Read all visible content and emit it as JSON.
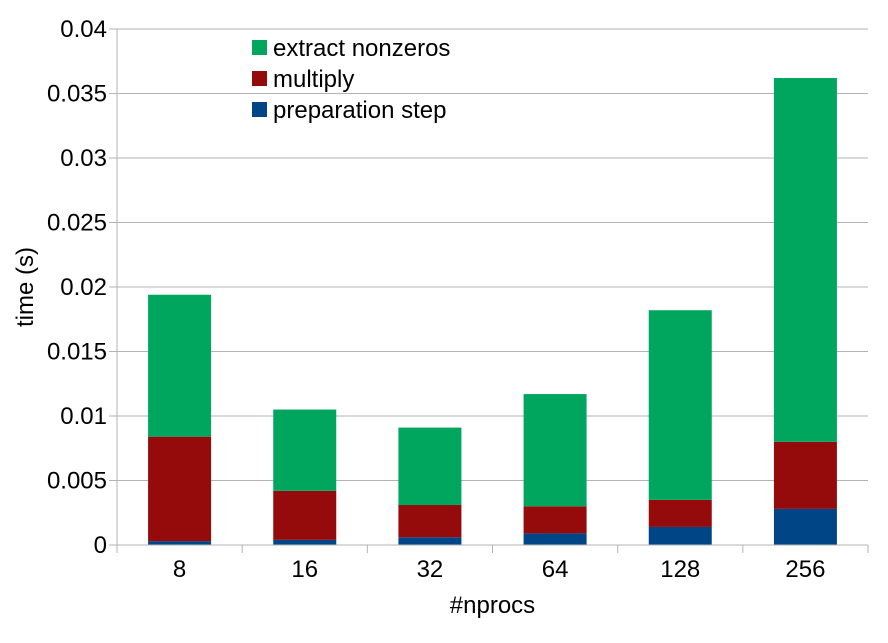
{
  "chart_data": {
    "type": "bar",
    "stacked": true,
    "categories": [
      "8",
      "16",
      "32",
      "64",
      "128",
      "256"
    ],
    "series": [
      {
        "name": "preparation step",
        "color": "#004586",
        "values": [
          0.0003,
          0.0004,
          0.0006,
          0.0009,
          0.0014,
          0.0028
        ]
      },
      {
        "name": "multiply",
        "color": "#950B0B",
        "values": [
          0.0081,
          0.0038,
          0.0025,
          0.0021,
          0.0021,
          0.0052
        ]
      },
      {
        "name": "extract nonzeros",
        "color": "#00A65D",
        "values": [
          0.011,
          0.0063,
          0.006,
          0.0087,
          0.0147,
          0.0282
        ]
      }
    ],
    "legend_order": [
      "extract nonzeros",
      "multiply",
      "preparation step"
    ],
    "xlabel": "#nprocs",
    "ylabel": "time (s)",
    "ylim": [
      0,
      0.04
    ],
    "yticks": [
      "0",
      "0.005",
      "0.01",
      "0.015",
      "0.02",
      "0.025",
      "0.03",
      "0.035",
      "0.04"
    ],
    "grid": true,
    "legend_position": "top-left inside"
  }
}
